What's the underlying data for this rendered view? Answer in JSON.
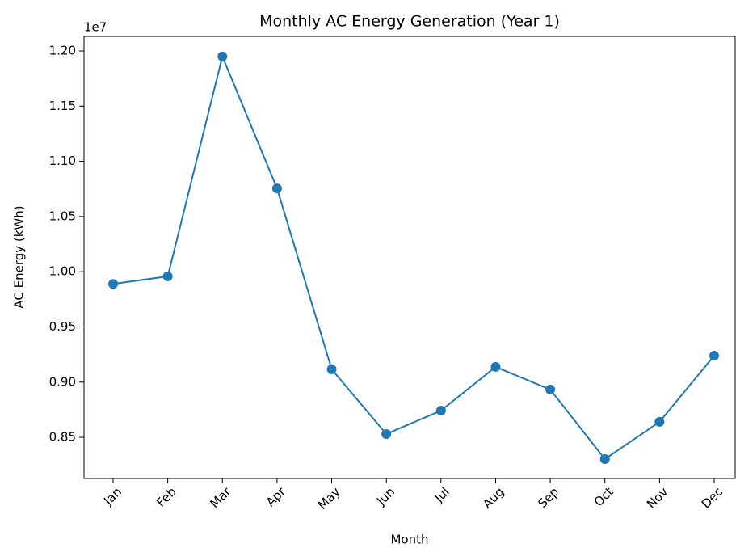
{
  "chart_data": {
    "type": "line",
    "title": "Monthly AC Energy Generation (Year 1)",
    "x_label": "Month",
    "y_label": "AC Energy (kWh)",
    "y_offset_label": "1e7",
    "categories": [
      "Jan",
      "Feb",
      "Mar",
      "Apr",
      "May",
      "Jun",
      "Jul",
      "Aug",
      "Sep",
      "Oct",
      "Nov",
      "Dec"
    ],
    "series": [
      {
        "color": "#1f77b4",
        "values": [
          0.989,
          0.9958,
          1.195,
          1.0755,
          0.9116,
          0.853,
          0.8742,
          0.9138,
          0.8933,
          0.8303,
          0.864,
          0.924
        ]
      }
    ],
    "ylim": [
      0.8127,
      1.2132
    ],
    "yticks": [
      {
        "value": 0.85,
        "label": "0.85"
      },
      {
        "value": 0.9,
        "label": "0.90"
      },
      {
        "value": 0.95,
        "label": "0.95"
      },
      {
        "value": 1,
        "label": "1.00"
      },
      {
        "value": 1.05,
        "label": "1.05"
      },
      {
        "value": 1.1,
        "label": "1.10"
      },
      {
        "value": 1.15,
        "label": "1.15"
      },
      {
        "value": 1.2,
        "label": "1.20"
      }
    ],
    "grid": false,
    "markers": true
  }
}
